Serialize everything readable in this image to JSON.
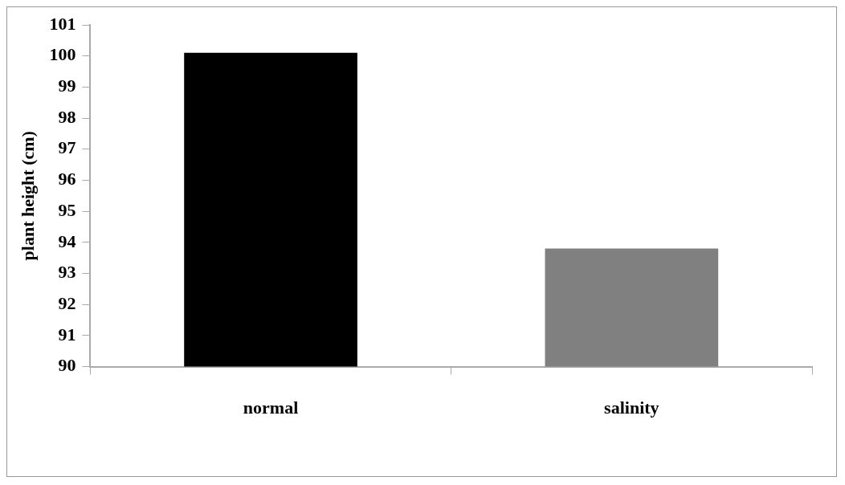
{
  "chart_data": {
    "type": "bar",
    "ylabel": "plant height (cm)",
    "categories": [
      "normal",
      "salinity"
    ],
    "values": [
      100.1,
      93.8
    ],
    "colors": [
      "#000000",
      "#808080"
    ],
    "ylim": [
      90,
      101
    ],
    "yticks": [
      90,
      91,
      92,
      93,
      94,
      95,
      96,
      97,
      98,
      99,
      100,
      101
    ],
    "grid": false,
    "legend": false
  }
}
